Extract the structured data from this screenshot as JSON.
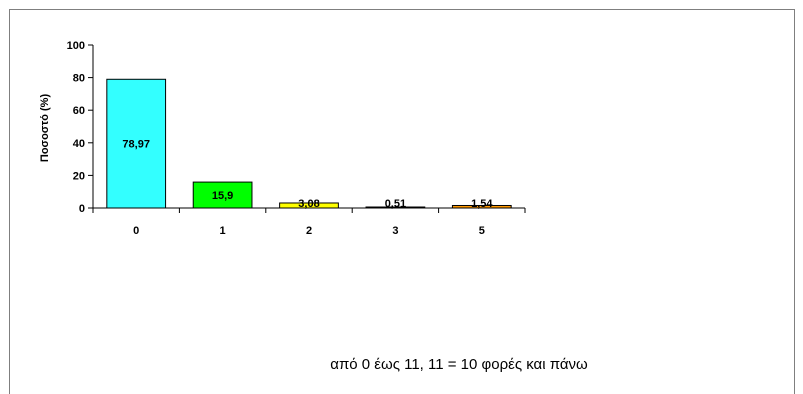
{
  "chart_data": {
    "type": "bar",
    "categories": [
      "0",
      "1",
      "2",
      "3",
      "5"
    ],
    "values": [
      78.97,
      15.9,
      3.08,
      0.51,
      1.54
    ],
    "value_labels": [
      "78,97",
      "15,9",
      "3,08",
      "0,51",
      "1,54"
    ],
    "colors": [
      "#33ffff",
      "#00ff00",
      "#ffff00",
      "#ffff00",
      "#ff9900"
    ],
    "ylabel": "Ποσοστό (%)",
    "xlabel": "",
    "ylim": [
      0,
      100
    ],
    "yticks": [
      0,
      20,
      40,
      60,
      80,
      100
    ],
    "grid": false,
    "legend": "none"
  },
  "footnote": "από 0 έως 11,  11 = 10 φορές και πάνω"
}
